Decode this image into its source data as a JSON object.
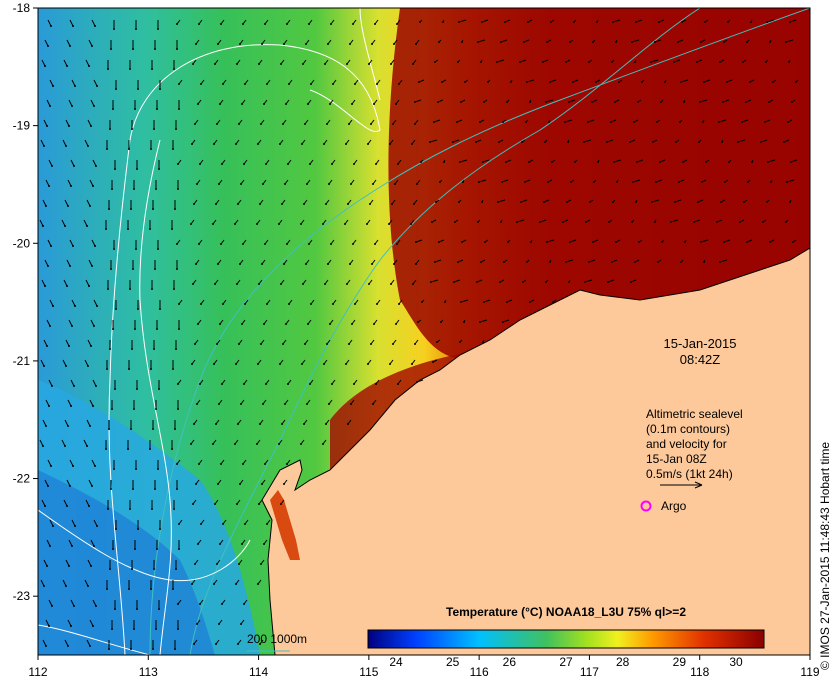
{
  "map": {
    "x_ticks": [
      "112",
      "113",
      "114",
      "115",
      "116",
      "117",
      "118",
      "119"
    ],
    "y_ticks": [
      "-18",
      "-19",
      "-20",
      "-21",
      "-22",
      "-23"
    ],
    "x_range": [
      112,
      119
    ],
    "y_range": [
      -23.5,
      -18
    ]
  },
  "timestamp": {
    "date": "15-Jan-2015",
    "time": "08:42Z"
  },
  "legend": {
    "lines": [
      "Altimetric sealevel",
      "(0.1m contours)",
      "and velocity for",
      "15-Jan 08Z",
      "0.5m/s (1kt 24h)"
    ],
    "argo_label": "Argo"
  },
  "colorbar": {
    "title": "Temperature (°C) NOAA18_L3U 75% ql>=2",
    "ticks": [
      "24",
      "25",
      "26",
      "27",
      "28",
      "29",
      "30"
    ],
    "colors": [
      "#00007f",
      "#0040ff",
      "#00c0ff",
      "#40c080",
      "#30c030",
      "#e8e820",
      "#ff9900",
      "#e04000",
      "#8b0000"
    ]
  },
  "depth_legend": {
    "label": "200  1000m"
  },
  "credit": "© IMOS 27-Jan-2015 11:48:43 Hobart time",
  "colors": {
    "land": "#fdc99a",
    "argo": "#ff00ff",
    "contour_200": "#40c0c0",
    "sealevel_contour": "#ffffff"
  }
}
